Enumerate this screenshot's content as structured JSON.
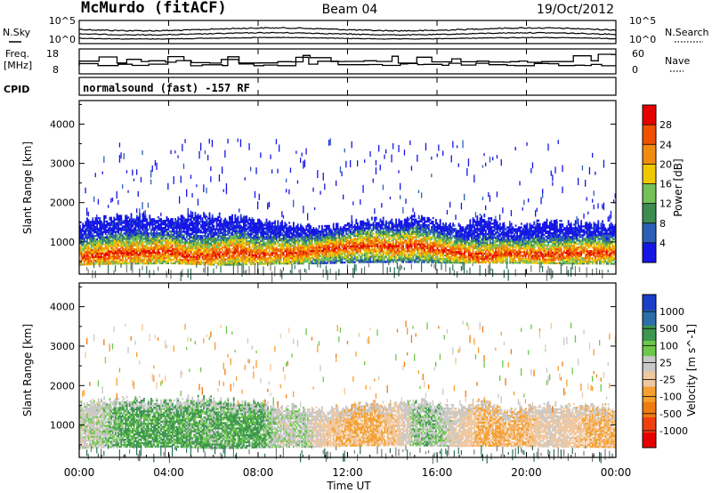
{
  "header": {
    "station": "McMurdo (fitACF)",
    "beam": "Beam 04",
    "date": "19/Oct/2012"
  },
  "left_labels": {
    "nsky": "N.Sky",
    "freq_line1": "Freq.",
    "freq_line2": "[MHz]",
    "cpid": "CPID"
  },
  "right_labels": {
    "nsearch": "N.Search",
    "nave": "Nave"
  },
  "cpid_text": "normalsound (fast) -157 RF",
  "noise_panel": {
    "left_ticks": [
      "10^5",
      "10^0"
    ],
    "right_ticks": [
      "10^5",
      "10^0"
    ]
  },
  "freq_panel": {
    "left_ticks": [
      "18",
      "8"
    ],
    "right_ticks": [
      "60",
      "0"
    ]
  },
  "x_axis": {
    "label": "Time UT",
    "ticks": [
      "00:00",
      "04:00",
      "08:00",
      "12:00",
      "16:00",
      "20:00",
      "00:00"
    ]
  },
  "colors": {
    "power": [
      "#1515e6",
      "#2c5fb8",
      "#3c8c50",
      "#74c15a",
      "#f0c800",
      "#f08c10",
      "#f05000",
      "#e60000"
    ],
    "velocity": [
      "#e60000",
      "#f04010",
      "#f07a10",
      "#f5a030",
      "#f0c8a0",
      "#c8c8c8",
      "#6dc84a",
      "#3c9650",
      "#2c6eaa",
      "#1b3ec8"
    ]
  },
  "chart_data": [
    {
      "type": "heatmap",
      "title": "Power",
      "xlabel": "",
      "ylabel": "Slant Range [km]",
      "ylim": [
        180,
        4600
      ],
      "y_ticks": [
        1000,
        2000,
        3000,
        4000
      ],
      "colorbar": {
        "label": "Power [dB]",
        "range": [
          0,
          32
        ],
        "ticks": [
          4,
          8,
          12,
          16,
          20,
          24,
          28
        ]
      },
      "series": [
        {
          "name": "echo_lower_edge_km",
          "x": [
            0,
            1,
            2,
            3,
            4,
            5,
            6,
            7,
            8,
            9,
            10,
            11,
            12,
            13,
            14,
            15,
            16,
            17,
            18,
            19,
            20,
            21,
            22,
            23,
            24
          ],
          "values": [
            400,
            420,
            430,
            430,
            440,
            420,
            400,
            400,
            420,
            430,
            430,
            440,
            460,
            470,
            470,
            470,
            460,
            450,
            460,
            450,
            450,
            440,
            430,
            430,
            420
          ]
        },
        {
          "name": "echo_upper_edge_km",
          "x": [
            0,
            1,
            2,
            3,
            4,
            5,
            6,
            7,
            8,
            9,
            10,
            11,
            12,
            13,
            14,
            15,
            16,
            17,
            18,
            19,
            20,
            21,
            22,
            23,
            24
          ],
          "values": [
            1500,
            1600,
            1650,
            1600,
            1550,
            1650,
            1650,
            1600,
            1550,
            1450,
            1400,
            1350,
            1450,
            1550,
            1500,
            1600,
            1500,
            1400,
            1650,
            1350,
            1400,
            1500,
            1450,
            1450,
            1400
          ]
        },
        {
          "name": "strong_echo_center_km",
          "x": [
            0,
            1,
            2,
            3,
            4,
            5,
            6,
            7,
            8,
            9,
            10,
            11,
            12,
            13,
            14,
            15,
            16,
            17,
            18,
            19,
            20,
            21,
            22,
            23,
            24
          ],
          "values": [
            600,
            650,
            700,
            700,
            750,
            600,
            650,
            750,
            650,
            700,
            700,
            800,
            850,
            900,
            850,
            900,
            800,
            700,
            600,
            700,
            650,
            650,
            700,
            700,
            700
          ]
        }
      ]
    },
    {
      "type": "heatmap",
      "title": "Velocity",
      "xlabel": "Time UT",
      "ylabel": "Slant Range [km]",
      "ylim": [
        180,
        4600
      ],
      "y_ticks": [
        1000,
        2000,
        3000,
        4000
      ],
      "colorbar": {
        "label": "Velocity [m s^-1]",
        "ticks": [
          1000,
          500,
          100,
          25,
          -25,
          -100,
          -500,
          -1000
        ]
      },
      "series": [
        {
          "name": "echo_lower_edge_km",
          "x": [
            0,
            1,
            2,
            3,
            4,
            5,
            6,
            7,
            8,
            9,
            10,
            11,
            12,
            13,
            14,
            15,
            16,
            17,
            18,
            19,
            20,
            21,
            22,
            23,
            24
          ],
          "values": [
            400,
            420,
            430,
            430,
            440,
            420,
            400,
            400,
            420,
            430,
            430,
            440,
            460,
            470,
            470,
            470,
            460,
            450,
            460,
            450,
            450,
            440,
            430,
            430,
            420
          ]
        },
        {
          "name": "echo_upper_edge_km",
          "x": [
            0,
            1,
            2,
            3,
            4,
            5,
            6,
            7,
            8,
            9,
            10,
            11,
            12,
            13,
            14,
            15,
            16,
            17,
            18,
            19,
            20,
            21,
            22,
            23,
            24
          ],
          "values": [
            1500,
            1600,
            1650,
            1600,
            1550,
            1650,
            1650,
            1600,
            1550,
            1450,
            1400,
            1350,
            1450,
            1550,
            1500,
            1600,
            1500,
            1400,
            1650,
            1350,
            1400,
            1500,
            1450,
            1450,
            1400
          ]
        },
        {
          "name": "dominant_velocity_ms",
          "x": [
            0,
            1,
            2,
            3,
            4,
            5,
            6,
            7,
            8,
            9,
            10,
            11,
            12,
            13,
            14,
            15,
            16,
            17,
            18,
            19,
            20,
            21,
            22,
            23,
            24
          ],
          "values": [
            0,
            10,
            60,
            60,
            60,
            50,
            50,
            60,
            60,
            0,
            20,
            -60,
            -100,
            -120,
            -80,
            30,
            30,
            -40,
            -100,
            -100,
            -100,
            -20,
            -60,
            -100,
            -100
          ]
        }
      ]
    }
  ]
}
